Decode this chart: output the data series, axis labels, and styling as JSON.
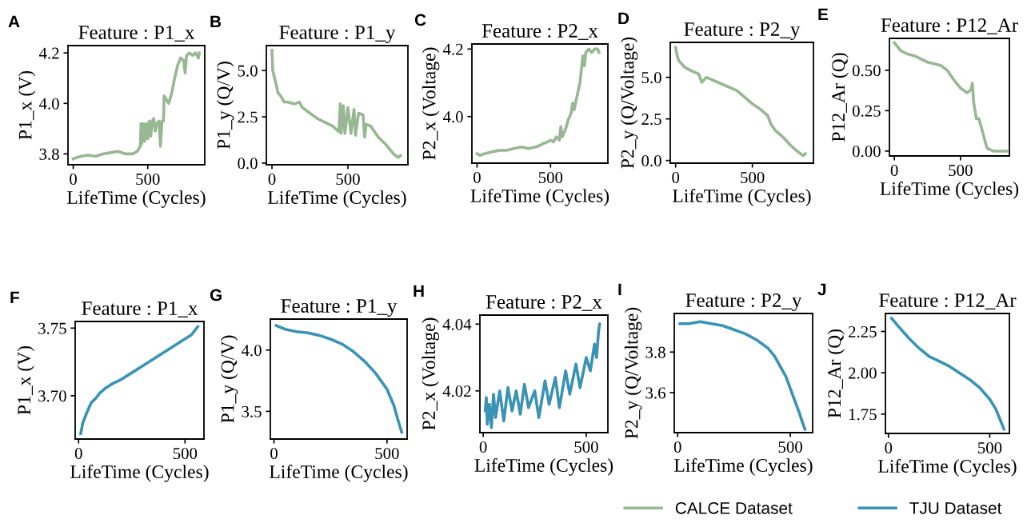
{
  "chart_data": [
    {
      "type": "line",
      "title": "Feature : P1_x",
      "xlabel": "LifeTime (Cycles)",
      "ylabel": "P1_x (V)",
      "annotations": [
        "A"
      ],
      "xlim": [
        -35,
        882
      ],
      "xticks": [
        0,
        500
      ],
      "ylim": [
        3.757,
        4.229
      ],
      "yticks": [
        3.8,
        {
          "value": 4,
          "label": "4.0"
        },
        4.2
      ],
      "grid": false,
      "legend": "bottom right",
      "series": [
        {
          "name": "CALCE Dataset",
          "color": "#97b892",
          "x": [
            0,
            20,
            50,
            100,
            150,
            200,
            250,
            300,
            350,
            400,
            430,
            450,
            455,
            460,
            470,
            480,
            490,
            500,
            510,
            520,
            530,
            540,
            550,
            560,
            575,
            585,
            595,
            605,
            610,
            620,
            640,
            660,
            680,
            700,
            720,
            740,
            750,
            760,
            780,
            800,
            820,
            840,
            845
          ],
          "values": [
            3.78,
            3.785,
            3.79,
            3.795,
            3.79,
            3.8,
            3.805,
            3.81,
            3.8,
            3.8,
            3.81,
            3.83,
            3.92,
            3.84,
            3.92,
            3.85,
            3.92,
            3.86,
            3.93,
            3.87,
            3.93,
            3.94,
            3.89,
            3.92,
            3.93,
            3.83,
            3.93,
            3.93,
            4.03,
            4.02,
            4.0,
            4.04,
            4.1,
            4.15,
            4.18,
            4.17,
            4.12,
            4.19,
            4.2,
            4.19,
            4.2,
            4.18,
            4.2
          ]
        }
      ]
    },
    {
      "type": "line",
      "title": "Feature : P1_y",
      "xlabel": "LifeTime (Cycles)",
      "ylabel": "P1_y (Q/V)",
      "annotations": [
        "B"
      ],
      "xlim": [
        -37,
        895
      ],
      "xticks": [
        0,
        500
      ],
      "ylim": [
        -0.09,
        6.35
      ],
      "yticks": [
        {
          "value": 0,
          "label": "0.0"
        },
        2.5,
        {
          "value": 5,
          "label": "5.0"
        }
      ],
      "grid": false,
      "series": [
        {
          "color": "#97b892",
          "x": [
            0,
            5,
            20,
            40,
            60,
            80,
            100,
            150,
            180,
            200,
            250,
            300,
            350,
            400,
            440,
            450,
            455,
            470,
            480,
            500,
            520,
            540,
            550,
            570,
            600,
            610,
            620,
            650,
            700,
            750,
            800,
            830,
            845
          ],
          "values": [
            6.1,
            5.0,
            4.5,
            3.8,
            3.6,
            3.3,
            3.3,
            3.2,
            3.3,
            3.0,
            2.7,
            2.4,
            2.2,
            2.0,
            1.7,
            3.2,
            1.6,
            3.1,
            1.6,
            3.0,
            1.6,
            2.9,
            1.5,
            2.7,
            2.6,
            1.4,
            2.1,
            2.0,
            1.4,
            1.0,
            0.5,
            0.3,
            0.4
          ]
        }
      ]
    },
    {
      "type": "line",
      "title": "Feature : P2_x",
      "xlabel": "LifeTime (Cycles)",
      "ylabel": "P2_x (Voltage)",
      "annotations": [
        "C"
      ],
      "xlim": [
        -35,
        890
      ],
      "xticks": [
        0,
        500
      ],
      "ylim": [
        3.862,
        4.215
      ],
      "yticks": [
        {
          "value": 4,
          "label": "4.0"
        },
        4.2
      ],
      "grid": false,
      "series": [
        {
          "color": "#97b892",
          "x": [
            0,
            20,
            50,
            100,
            150,
            200,
            250,
            300,
            350,
            400,
            430,
            450,
            480,
            500,
            520,
            540,
            560,
            570,
            580,
            600,
            620,
            640,
            650,
            660,
            680,
            700,
            710,
            720,
            730,
            740,
            760,
            780,
            800,
            820,
            830
          ],
          "values": [
            3.89,
            3.885,
            3.89,
            3.895,
            3.9,
            3.9,
            3.905,
            3.91,
            3.905,
            3.91,
            3.915,
            3.92,
            3.925,
            3.93,
            3.925,
            3.94,
            3.93,
            3.97,
            3.94,
            3.96,
            3.99,
            4.01,
            4.04,
            4.02,
            4.06,
            4.1,
            4.14,
            4.18,
            4.15,
            4.19,
            4.2,
            4.19,
            4.2,
            4.2,
            4.19
          ]
        }
      ]
    },
    {
      "type": "line",
      "title": "Feature : P2_y",
      "xlabel": "LifeTime (Cycles)",
      "ylabel": "P2_y (Q/Voltage)",
      "annotations": [
        "D"
      ],
      "xlim": [
        -35,
        898
      ],
      "xticks": [
        0,
        500
      ],
      "ylim": [
        -0.16,
        7.1
      ],
      "yticks": [
        {
          "value": 0,
          "label": "0.0"
        },
        2.5,
        {
          "value": 5,
          "label": "5.0"
        }
      ],
      "grid": false,
      "series": [
        {
          "color": "#97b892",
          "x": [
            0,
            10,
            20,
            40,
            60,
            100,
            150,
            170,
            200,
            250,
            300,
            350,
            400,
            450,
            500,
            550,
            600,
            620,
            650,
            700,
            750,
            800,
            830,
            845
          ],
          "values": [
            6.8,
            6.3,
            6.0,
            5.8,
            5.6,
            5.4,
            5.2,
            4.7,
            5.0,
            4.8,
            4.6,
            4.4,
            4.2,
            3.8,
            3.4,
            3.1,
            2.7,
            2.2,
            1.8,
            1.4,
            0.9,
            0.5,
            0.3,
            0.4
          ]
        }
      ]
    },
    {
      "type": "line",
      "title": "Feature : P12_Ar",
      "xlabel": "LifeTime (Cycles)",
      "ylabel": "P12_Ar (Q)",
      "annotations": [
        "E"
      ],
      "xlim": [
        -37,
        870
      ],
      "xticks": [
        0,
        500
      ],
      "ylim": [
        -0.03,
        0.697
      ],
      "yticks": [
        {
          "value": 0,
          "label": "0.00"
        },
        0.25,
        {
          "value": 0.5,
          "label": "0.50"
        }
      ],
      "grid": false,
      "series": [
        {
          "color": "#97b892",
          "x": [
            0,
            20,
            50,
            100,
            150,
            200,
            250,
            300,
            350,
            400,
            450,
            500,
            550,
            580,
            590,
            600,
            620,
            640,
            660,
            680,
            700,
            720,
            750,
            800,
            850
          ],
          "values": [
            0.67,
            0.65,
            0.62,
            0.6,
            0.59,
            0.57,
            0.55,
            0.54,
            0.53,
            0.5,
            0.44,
            0.39,
            0.36,
            0.38,
            0.42,
            0.3,
            0.2,
            0.2,
            0.14,
            0.08,
            0.02,
            0.01,
            0.0,
            0.0,
            0.0
          ]
        }
      ]
    },
    {
      "type": "line",
      "title": "Feature : P1_x",
      "xlabel": "LifeTime (Cycles)",
      "ylabel": "P1_x (V)",
      "annotations": [
        "F"
      ],
      "xlim": [
        -16,
        589
      ],
      "xticks": [
        0,
        500
      ],
      "ylim": [
        3.668,
        3.7549
      ],
      "yticks": [
        {
          "value": 3.7,
          "label": "3.70"
        },
        3.75
      ],
      "grid": false,
      "legend": "bottom right",
      "series": [
        {
          "name": "TJU Dataset",
          "color": "#3a93b5",
          "x": [
            10,
            20,
            40,
            60,
            80,
            100,
            130,
            160,
            200,
            250,
            300,
            350,
            400,
            450,
            500,
            530,
            550,
            560
          ],
          "values": [
            3.672,
            3.68,
            3.688,
            3.695,
            3.698,
            3.702,
            3.706,
            3.709,
            3.712,
            3.717,
            3.722,
            3.727,
            3.732,
            3.737,
            3.742,
            3.745,
            3.749,
            3.751
          ]
        }
      ]
    },
    {
      "type": "line",
      "title": "Feature : P1_y",
      "xlabel": "LifeTime (Cycles)",
      "ylabel": "P1_y (Q/V)",
      "annotations": [
        "G"
      ],
      "xlim": [
        -16,
        589
      ],
      "xticks": [
        0,
        500
      ],
      "ylim": [
        3.274,
        4.253
      ],
      "yticks": [
        3.5,
        {
          "value": 4,
          "label": "4.0"
        }
      ],
      "grid": false,
      "series": [
        {
          "color": "#3a93b5",
          "x": [
            10,
            50,
            100,
            150,
            200,
            250,
            300,
            350,
            400,
            450,
            500,
            530,
            550,
            565
          ],
          "values": [
            4.2,
            4.17,
            4.15,
            4.14,
            4.12,
            4.09,
            4.05,
            3.99,
            3.91,
            3.81,
            3.68,
            3.55,
            3.42,
            3.33
          ]
        }
      ]
    },
    {
      "type": "line",
      "title": "Feature : P2_x",
      "xlabel": "LifeTime (Cycles)",
      "ylabel": "P2_x (Voltage)",
      "annotations": [
        "H"
      ],
      "xlim": [
        -16,
        605
      ],
      "xticks": [
        0,
        500
      ],
      "ylim": [
        4.0075,
        4.0427
      ],
      "yticks": [
        4.02,
        4.04
      ],
      "grid": false,
      "series": [
        {
          "color": "#3a93b5",
          "x": [
            10,
            15,
            20,
            30,
            40,
            50,
            60,
            80,
            100,
            120,
            140,
            160,
            180,
            200,
            220,
            250,
            270,
            300,
            320,
            350,
            370,
            400,
            420,
            450,
            470,
            500,
            520,
            540,
            550,
            560,
            565
          ],
          "values": [
            4.014,
            4.018,
            4.01,
            4.016,
            4.009,
            4.019,
            4.012,
            4.02,
            4.011,
            4.021,
            4.014,
            4.02,
            4.013,
            4.022,
            4.015,
            4.02,
            4.012,
            4.023,
            4.016,
            4.024,
            4.015,
            4.026,
            4.019,
            4.028,
            4.021,
            4.03,
            4.026,
            4.034,
            4.03,
            4.038,
            4.04
          ]
        }
      ]
    },
    {
      "type": "line",
      "title": "Feature : P2_y",
      "xlabel": "LifeTime (Cycles)",
      "ylabel": "P2_y (Q/Voltage)",
      "annotations": [
        "I"
      ],
      "xlim": [
        -15,
        599
      ],
      "xticks": [
        0,
        500
      ],
      "ylim": [
        3.403,
        3.99
      ],
      "yticks": [
        3.6,
        3.8
      ],
      "grid": false,
      "series": [
        {
          "color": "#3a93b5",
          "x": [
            10,
            50,
            100,
            150,
            200,
            250,
            300,
            350,
            400,
            430,
            460,
            480,
            500,
            520,
            540,
            555,
            565
          ],
          "values": [
            3.94,
            3.94,
            3.95,
            3.94,
            3.93,
            3.91,
            3.89,
            3.86,
            3.82,
            3.78,
            3.72,
            3.68,
            3.62,
            3.56,
            3.5,
            3.45,
            3.42
          ]
        }
      ]
    },
    {
      "type": "line",
      "title": "Feature : P12_Ar",
      "xlabel": "LifeTime (Cycles)",
      "ylabel": "P12_Ar (Q)",
      "annotations": [
        "J"
      ],
      "xlim": [
        -15,
        597
      ],
      "xticks": [
        0,
        500
      ],
      "ylim": [
        1.633,
        2.359
      ],
      "yticks": [
        1.75,
        {
          "value": 2,
          "label": "2.00"
        },
        2.25
      ],
      "grid": false,
      "series": [
        {
          "color": "#3a93b5",
          "x": [
            15,
            50,
            100,
            150,
            200,
            250,
            300,
            350,
            400,
            450,
            500,
            530,
            560,
            570
          ],
          "values": [
            2.33,
            2.28,
            2.21,
            2.15,
            2.1,
            2.07,
            2.04,
            2.0,
            1.96,
            1.91,
            1.84,
            1.78,
            1.69,
            1.66
          ]
        }
      ]
    }
  ]
}
